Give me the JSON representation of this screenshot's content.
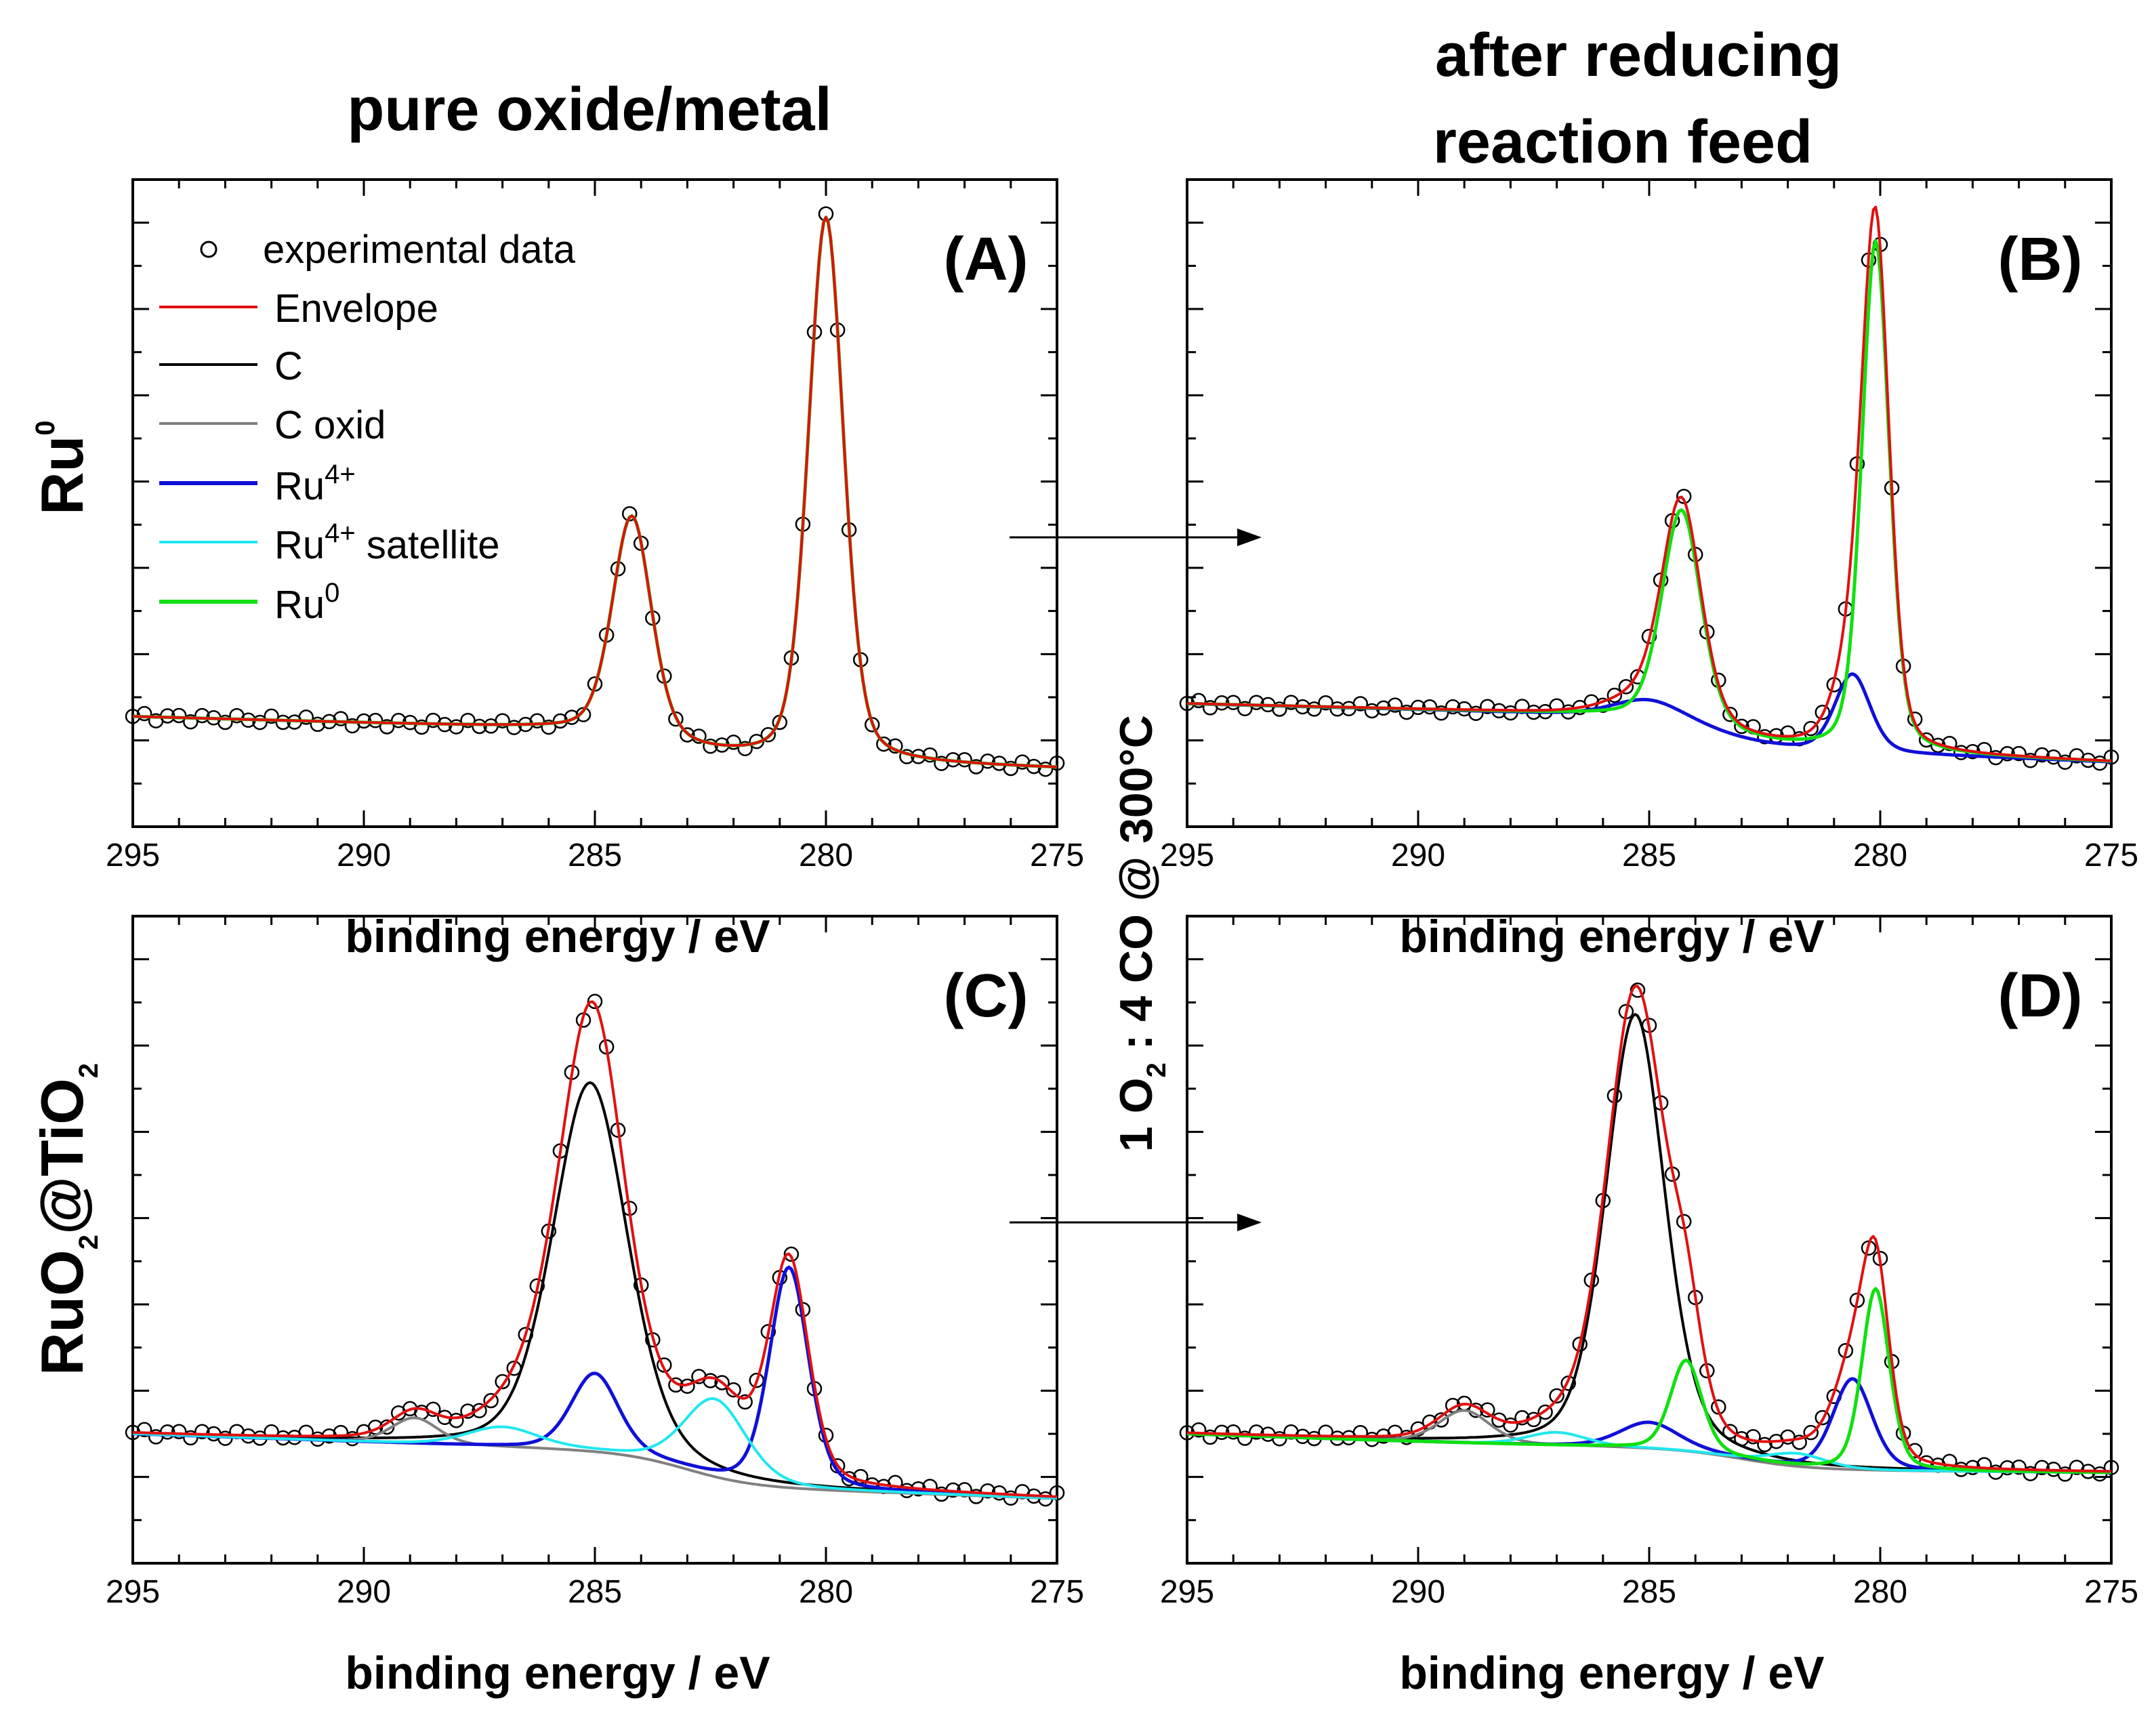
{
  "header": {
    "left_title": "pure oxide/metal",
    "right_title_line1": "after reducing",
    "right_title_line2": "reaction feed"
  },
  "row_labels": {
    "top": {
      "base": "Ru",
      "sup": "0"
    },
    "bottom": {
      "p1": "RuO",
      "s1": "2",
      "p2": "@TiO",
      "s2": "2"
    }
  },
  "condition": {
    "p1": "1 O",
    "s1": "2",
    "p2": " : 4 CO @ 300°C"
  },
  "legend": {
    "experimental": "experimental data",
    "envelope": "Envelope",
    "c": "C",
    "c_oxid": "C oxid",
    "ru4": {
      "base": "Ru",
      "sup": "4+"
    },
    "ru4sat": {
      "base": "Ru",
      "sup": "4+",
      "tail": " satellite"
    },
    "ru0": {
      "base": "Ru",
      "sup": "0"
    }
  },
  "colors": {
    "envelope": "#e01010",
    "c": "#000000",
    "c_oxid": "#808080",
    "ru4": "#1010d8",
    "ru4sat": "#1fe8f0",
    "ru0": "#10e010"
  },
  "chart_data": [
    {
      "id": "A",
      "type": "line",
      "panel_label": "(A)",
      "xlabel": "binding energy / eV",
      "ylabel": "",
      "xlim": [
        295,
        275
      ],
      "ylim": [
        0,
        1
      ],
      "x_ticks": [
        "295",
        "290",
        "285",
        "280",
        "275"
      ],
      "baseline": {
        "start": 0.17,
        "mid": 0.13,
        "end": 0.09,
        "mid_x": 283.5
      },
      "peaks": [
        {
          "component": "ru0",
          "center": 284.2,
          "height": 0.34,
          "fwhm": 1.0
        },
        {
          "component": "ru0",
          "center": 280.0,
          "height": 0.84,
          "fwhm": 0.9
        }
      ],
      "experimental_peaks_y": [
        0.52,
        0.96
      ],
      "shown_components": [
        "ru0"
      ],
      "show_legend": true
    },
    {
      "id": "B",
      "type": "line",
      "panel_label": "(B)",
      "xlabel": "binding energy / eV",
      "ylabel": "",
      "xlim": [
        295,
        275
      ],
      "ylim": [
        0,
        1
      ],
      "x_ticks": [
        "295",
        "290",
        "285",
        "280",
        "275"
      ],
      "baseline": {
        "start": 0.19,
        "mid": 0.15,
        "end": 0.1,
        "mid_x": 283.5
      },
      "peaks": [
        {
          "component": "ru4",
          "center": 285.0,
          "height": 0.03,
          "fwhm": 1.8
        },
        {
          "component": "ru0",
          "center": 284.3,
          "height": 0.33,
          "fwhm": 1.0
        },
        {
          "component": "ru4",
          "center": 280.6,
          "height": 0.12,
          "fwhm": 0.9
        },
        {
          "component": "ru0",
          "center": 280.1,
          "height": 0.79,
          "fwhm": 0.7
        }
      ],
      "experimental_peaks_y": [
        0.51,
        0.93
      ],
      "shown_components": [
        "ru4",
        "ru0"
      ],
      "show_legend": false
    },
    {
      "id": "C",
      "type": "line",
      "panel_label": "(C)",
      "xlabel": "binding energy / eV",
      "ylabel": "",
      "xlim": [
        295,
        275
      ],
      "ylim": [
        0,
        1
      ],
      "x_ticks": [
        "295",
        "290",
        "285",
        "280",
        "275"
      ],
      "baseline": {
        "start": 0.2,
        "mid": 0.15,
        "end": 0.1,
        "mid_x": 283.0
      },
      "peaks": [
        {
          "component": "c_oxid",
          "center": 288.9,
          "height": 0.04,
          "fwhm": 1.2
        },
        {
          "component": "ru4sat",
          "center": 287.0,
          "height": 0.03,
          "fwhm": 1.8
        },
        {
          "component": "c",
          "center": 285.1,
          "height": 0.57,
          "fwhm": 1.9
        },
        {
          "component": "ru4",
          "center": 285.0,
          "height": 0.12,
          "fwhm": 1.2
        },
        {
          "component": "ru4sat",
          "center": 282.4,
          "height": 0.12,
          "fwhm": 1.6
        },
        {
          "component": "ru4",
          "center": 280.8,
          "height": 0.34,
          "fwhm": 1.0
        }
      ],
      "experimental_peaks_y": [
        0.91,
        0.43
      ],
      "shown_components": [
        "c",
        "c_oxid",
        "ru4",
        "ru4sat"
      ],
      "show_legend": false
    },
    {
      "id": "D",
      "type": "line",
      "panel_label": "(D)",
      "xlabel": "binding energy / eV",
      "ylabel": "",
      "xlim": [
        295,
        275
      ],
      "ylim": [
        0,
        1
      ],
      "x_ticks": [
        "295",
        "290",
        "285",
        "280",
        "275"
      ],
      "baseline": {
        "start": 0.2,
        "mid": 0.16,
        "end": 0.14,
        "mid_x": 283.0
      },
      "peaks": [
        {
          "component": "c_oxid",
          "center": 289.0,
          "height": 0.05,
          "fwhm": 1.3
        },
        {
          "component": "ru4sat",
          "center": 287.0,
          "height": 0.02,
          "fwhm": 1.5
        },
        {
          "component": "c",
          "center": 285.3,
          "height": 0.67,
          "fwhm": 1.5
        },
        {
          "component": "ru4",
          "center": 285.0,
          "height": 0.04,
          "fwhm": 1.5
        },
        {
          "component": "ru0",
          "center": 284.2,
          "height": 0.14,
          "fwhm": 0.8
        },
        {
          "component": "ru4sat",
          "center": 281.8,
          "height": 0.02,
          "fwhm": 1.5
        },
        {
          "component": "ru4",
          "center": 280.6,
          "height": 0.14,
          "fwhm": 1.0
        },
        {
          "component": "ru0",
          "center": 280.1,
          "height": 0.28,
          "fwhm": 0.7
        }
      ],
      "experimental_peaks_y": [
        0.91,
        0.47
      ],
      "shown_components": [
        "c",
        "c_oxid",
        "ru4",
        "ru4sat",
        "ru0"
      ],
      "show_legend": false
    }
  ]
}
